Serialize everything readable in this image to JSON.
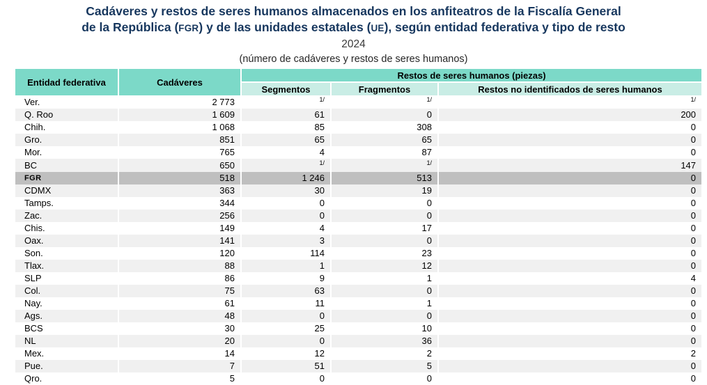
{
  "title": {
    "segments": [
      {
        "text": "Cadáveres y restos de seres humanos almacenados en los anfiteatros de la Fiscalía General"
      },
      {
        "br": true
      },
      {
        "text": "de la República ("
      },
      {
        "text": "FGR",
        "smallcaps": true
      },
      {
        "text": ") y de las unidades estatales ("
      },
      {
        "text": "UE",
        "smallcaps": true
      },
      {
        "text": "), según entidad federativa y tipo de resto"
      }
    ],
    "year": "2024",
    "subtitle": "(número de cadáveres y restos de seres humanos)"
  },
  "colors": {
    "title_navy": "#17375E",
    "header_teal": "#7CD9C8",
    "subheader_teal": "#C9EDE5",
    "row_alt": "#F0F0F0",
    "row_highlight": "#BFBFBF"
  },
  "chart_data": {
    "type": "table",
    "title": "Cadáveres y restos de seres humanos almacenados en los anfiteatros de la Fiscalía General de la República (FGR) y de las unidades estatales (UE), según entidad federativa y tipo de resto",
    "year": "2024",
    "unit_note": "(número de cadáveres y restos de seres humanos)",
    "footnote_marker": "1/",
    "headers": {
      "entity": "Entidad federativa",
      "cadaveres": "Cadáveres",
      "group": "Restos de seres humanos (piezas)",
      "segmentos": "Segmentos",
      "fragmentos": "Fragmentos",
      "restos_no_identificados": "Restos no identificados de seres humanos"
    },
    "rows": [
      {
        "entity": "Ver.",
        "values": [
          "2 773",
          "1/",
          "1/",
          "1/"
        ],
        "highlight": false
      },
      {
        "entity": "Q. Roo",
        "values": [
          "1 609",
          "61",
          "0",
          "200"
        ],
        "highlight": false
      },
      {
        "entity": "Chih.",
        "values": [
          "1 068",
          "85",
          "308",
          "0"
        ],
        "highlight": false
      },
      {
        "entity": "Gro.",
        "values": [
          "851",
          "65",
          "65",
          "0"
        ],
        "highlight": false
      },
      {
        "entity": "Mor.",
        "values": [
          "765",
          "4",
          "87",
          "0"
        ],
        "highlight": false
      },
      {
        "entity": "BC",
        "values": [
          "650",
          "1/",
          "1/",
          "147"
        ],
        "highlight": false
      },
      {
        "entity": "FGR",
        "values": [
          "518",
          "1 246",
          "513",
          "0"
        ],
        "highlight": true
      },
      {
        "entity": "CDMX",
        "values": [
          "363",
          "30",
          "19",
          "0"
        ],
        "highlight": false
      },
      {
        "entity": "Tamps.",
        "values": [
          "344",
          "0",
          "0",
          "0"
        ],
        "highlight": false
      },
      {
        "entity": "Zac.",
        "values": [
          "256",
          "0",
          "0",
          "0"
        ],
        "highlight": false
      },
      {
        "entity": "Chis.",
        "values": [
          "149",
          "4",
          "17",
          "0"
        ],
        "highlight": false
      },
      {
        "entity": "Oax.",
        "values": [
          "141",
          "3",
          "0",
          "0"
        ],
        "highlight": false
      },
      {
        "entity": "Son.",
        "values": [
          "120",
          "114",
          "23",
          "0"
        ],
        "highlight": false
      },
      {
        "entity": "Tlax.",
        "values": [
          "88",
          "1",
          "12",
          "0"
        ],
        "highlight": false
      },
      {
        "entity": "SLP",
        "values": [
          "86",
          "9",
          "1",
          "4"
        ],
        "highlight": false
      },
      {
        "entity": "Col.",
        "values": [
          "75",
          "63",
          "0",
          "0"
        ],
        "highlight": false
      },
      {
        "entity": "Nay.",
        "values": [
          "61",
          "11",
          "1",
          "0"
        ],
        "highlight": false
      },
      {
        "entity": "Ags.",
        "values": [
          "48",
          "0",
          "0",
          "0"
        ],
        "highlight": false
      },
      {
        "entity": "BCS",
        "values": [
          "30",
          "25",
          "10",
          "0"
        ],
        "highlight": false
      },
      {
        "entity": "NL",
        "values": [
          "20",
          "0",
          "36",
          "0"
        ],
        "highlight": false
      },
      {
        "entity": "Mex.",
        "values": [
          "14",
          "12",
          "2",
          "2"
        ],
        "highlight": false
      },
      {
        "entity": "Pue.",
        "values": [
          "7",
          "51",
          "5",
          "0"
        ],
        "highlight": false
      },
      {
        "entity": "Qro.",
        "values": [
          "5",
          "0",
          "0",
          "0"
        ],
        "highlight": false
      }
    ]
  }
}
